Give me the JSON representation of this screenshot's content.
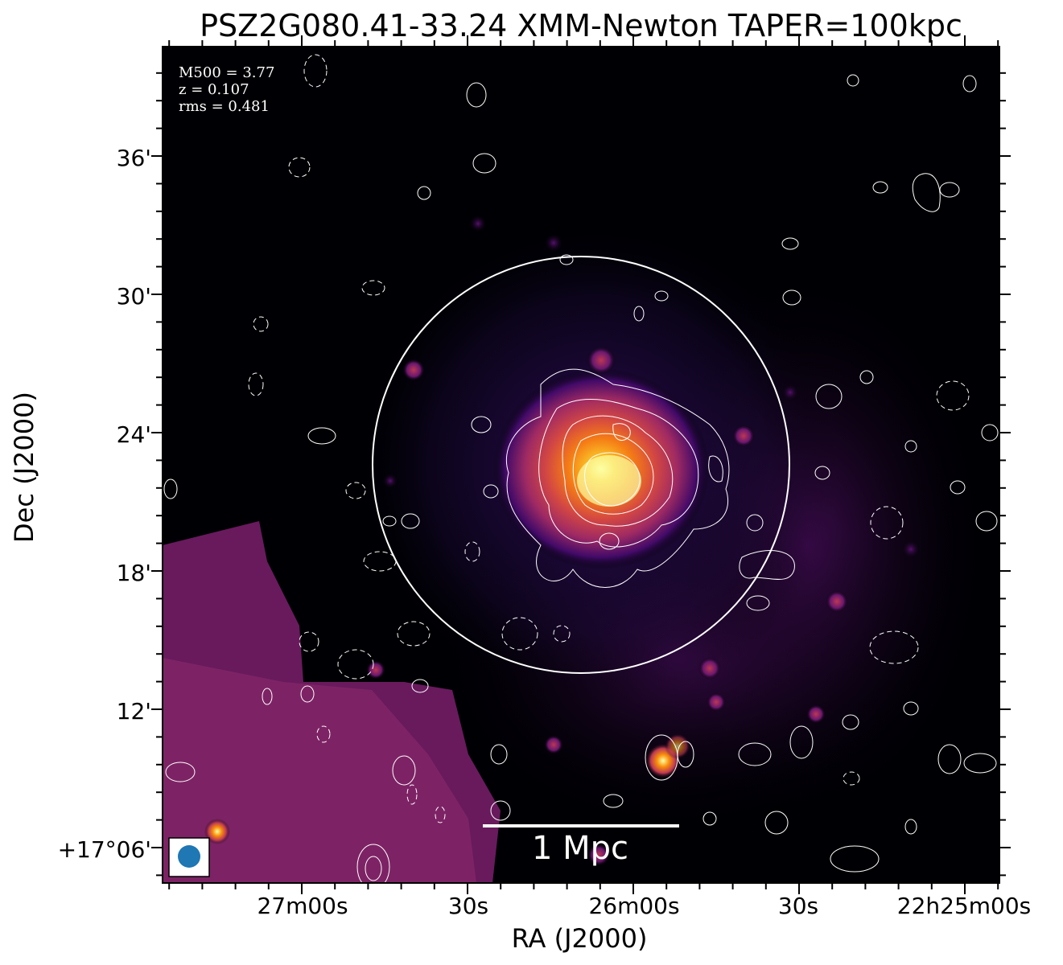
{
  "figure": {
    "title": "PSZ2G080.41-33.24 XMM-Newton TAPER=100kpc",
    "annotations": [
      "M500 = 3.77",
      "z = 0.107",
      "rms = 0.481"
    ],
    "scale_bar_label": "1 Mpc",
    "x_axis_title": "RA (J2000)",
    "y_axis_title": "Dec (J2000)",
    "x_ticks": [
      "27m00s",
      "30s",
      "26m00s",
      "30s",
      "22h25m00s"
    ],
    "y_ticks": [
      "36'",
      "30'",
      "24'",
      "18'",
      "12'",
      "+17°06'"
    ],
    "colormap": "inferno-like",
    "contour_color": "#ffffff",
    "beam_color": "#1f77b4"
  }
}
